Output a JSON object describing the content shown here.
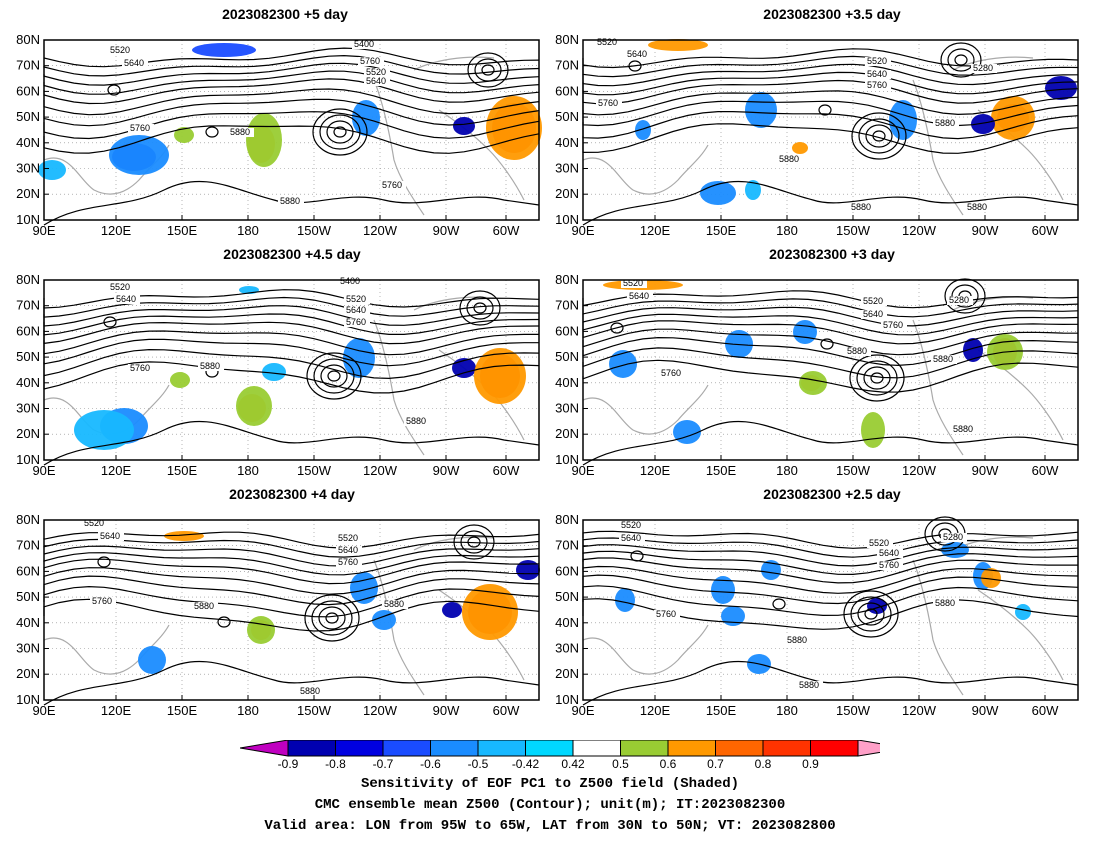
{
  "panels": [
    {
      "title": "2023082300 +5 day"
    },
    {
      "title": "2023082300 +3.5 day"
    },
    {
      "title": "2023082300 +4.5 day"
    },
    {
      "title": "2023082300 +3 day"
    },
    {
      "title": "2023082300 +4 day"
    },
    {
      "title": "2023082300 +2.5 day"
    }
  ],
  "axes": {
    "lat_labels": [
      "80N",
      "70N",
      "60N",
      "50N",
      "40N",
      "30N",
      "20N",
      "10N"
    ],
    "lon_labels": [
      "90E",
      "120E",
      "150E",
      "180",
      "150W",
      "120W",
      "90W",
      "60W"
    ]
  },
  "contour_labels": {
    "p0": [
      "5400",
      "5520",
      "5640",
      "5760",
      "5520",
      "5640",
      "5760",
      "5760",
      "5880",
      "5880"
    ],
    "p1": [
      "5520",
      "5640",
      "5760",
      "5520",
      "5640",
      "5760",
      "5280",
      "5880",
      "5880",
      "5880",
      "5880",
      "5880"
    ],
    "p2": [
      "5400",
      "5520",
      "5640",
      "5520",
      "5640",
      "5760",
      "5760",
      "5880",
      "5880"
    ],
    "p3": [
      "5520",
      "5640",
      "5520",
      "5640",
      "5760",
      "5280",
      "5880",
      "5880",
      "5760",
      "5880",
      "5880"
    ],
    "p4": [
      "5520",
      "5640",
      "5520",
      "5640",
      "5760",
      "5760",
      "5880",
      "5880",
      "5880"
    ],
    "p5": [
      "5520",
      "5640",
      "5280",
      "5520",
      "5640",
      "5760",
      "5760",
      "5880",
      "5880",
      "5880",
      "5880"
    ]
  },
  "colorbar": {
    "ticks": [
      "-0.9",
      "-0.8",
      "-0.7",
      "-0.6",
      "-0.5",
      "-0.42",
      "0.42",
      "0.5",
      "0.6",
      "0.7",
      "0.8",
      "0.9"
    ],
    "colors": [
      "#c000c0",
      "#0000b0",
      "#0000e0",
      "#1a4cff",
      "#1a8cff",
      "#17b8ff",
      "#00d8ff",
      "#ffffff",
      "#99cc33",
      "#ff9900",
      "#ff6600",
      "#ff3300",
      "#ff0000",
      "#ffa0c8"
    ]
  },
  "footer": {
    "line1": "Sensitivity of EOF PC1 to Z500 field (Shaded)",
    "line2": "CMC ensemble mean Z500 (Contour); unit(m); IT:2023082300",
    "line3": "Valid area: LON from 95W to 65W, LAT from 30N to 50N; VT: 2023082800"
  }
}
